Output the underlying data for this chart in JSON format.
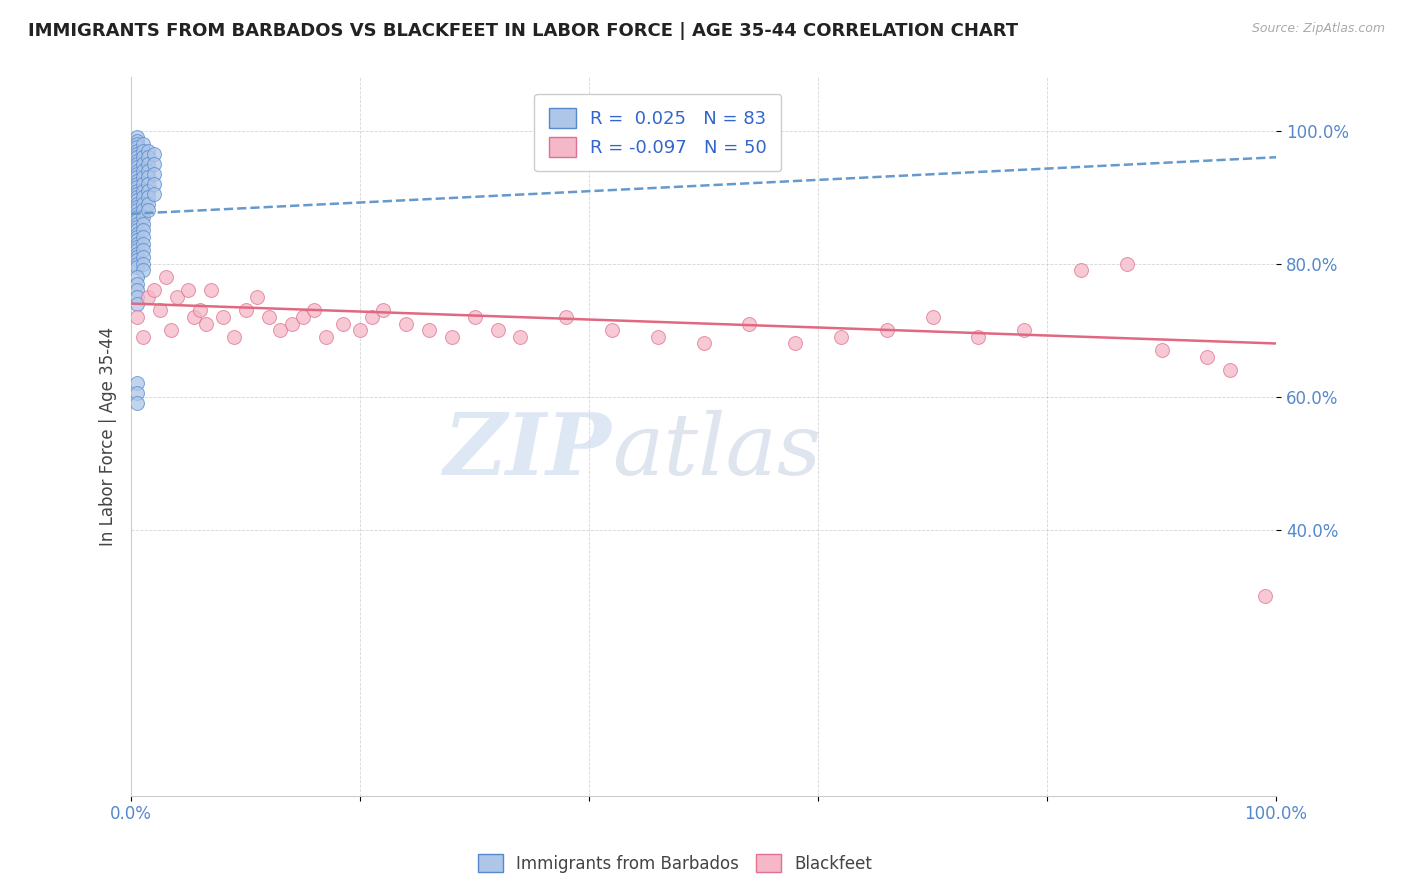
{
  "title": "IMMIGRANTS FROM BARBADOS VS BLACKFEET IN LABOR FORCE | AGE 35-44 CORRELATION CHART",
  "source": "Source: ZipAtlas.com",
  "ylabel": "In Labor Force | Age 35-44",
  "xlim": [
    0.0,
    1.0
  ],
  "ylim": [
    0.0,
    1.08
  ],
  "y_ticks": [
    0.4,
    0.6,
    0.8,
    1.0
  ],
  "y_tick_labels": [
    "40.0%",
    "60.0%",
    "80.0%",
    "100.0%"
  ],
  "x_ticks": [
    0.0,
    0.2,
    0.4,
    0.6,
    0.8,
    1.0
  ],
  "x_tick_labels": [
    "0.0%",
    "",
    "",
    "",
    "",
    "100.0%"
  ],
  "barbados_r": 0.025,
  "barbados_n": 83,
  "blackfeet_r": -0.097,
  "blackfeet_n": 50,
  "barbados_color": "#aec6e8",
  "blackfeet_color": "#f4b8c8",
  "barbados_edge_color": "#5588cc",
  "blackfeet_edge_color": "#e07090",
  "barbados_line_color": "#6699cc",
  "blackfeet_line_color": "#e06880",
  "watermark_zip": "ZIP",
  "watermark_atlas": "atlas",
  "barbados_x": [
    0.005,
    0.005,
    0.005,
    0.005,
    0.005,
    0.005,
    0.005,
    0.005,
    0.005,
    0.005,
    0.005,
    0.005,
    0.005,
    0.005,
    0.005,
    0.005,
    0.005,
    0.005,
    0.005,
    0.005,
    0.005,
    0.005,
    0.005,
    0.005,
    0.005,
    0.005,
    0.005,
    0.005,
    0.005,
    0.005,
    0.005,
    0.005,
    0.005,
    0.005,
    0.005,
    0.005,
    0.005,
    0.005,
    0.005,
    0.005,
    0.01,
    0.01,
    0.01,
    0.01,
    0.01,
    0.01,
    0.01,
    0.01,
    0.01,
    0.01,
    0.01,
    0.01,
    0.01,
    0.01,
    0.01,
    0.01,
    0.01,
    0.01,
    0.01,
    0.01,
    0.015,
    0.015,
    0.015,
    0.015,
    0.015,
    0.015,
    0.015,
    0.015,
    0.015,
    0.015,
    0.02,
    0.02,
    0.02,
    0.02,
    0.02,
    0.005,
    0.005,
    0.005,
    0.005,
    0.005,
    0.005,
    0.005,
    0.005
  ],
  "barbados_y": [
    0.99,
    0.985,
    0.98,
    0.975,
    0.97,
    0.965,
    0.96,
    0.955,
    0.95,
    0.945,
    0.94,
    0.935,
    0.93,
    0.925,
    0.92,
    0.915,
    0.91,
    0.905,
    0.9,
    0.895,
    0.89,
    0.885,
    0.88,
    0.875,
    0.87,
    0.865,
    0.86,
    0.855,
    0.85,
    0.845,
    0.84,
    0.835,
    0.83,
    0.825,
    0.82,
    0.815,
    0.81,
    0.805,
    0.8,
    0.795,
    0.98,
    0.97,
    0.96,
    0.95,
    0.94,
    0.93,
    0.92,
    0.91,
    0.9,
    0.89,
    0.88,
    0.87,
    0.86,
    0.85,
    0.84,
    0.83,
    0.82,
    0.81,
    0.8,
    0.79,
    0.97,
    0.96,
    0.95,
    0.94,
    0.93,
    0.92,
    0.91,
    0.9,
    0.89,
    0.88,
    0.965,
    0.95,
    0.935,
    0.92,
    0.905,
    0.62,
    0.605,
    0.59,
    0.78,
    0.77,
    0.76,
    0.75,
    0.74
  ],
  "blackfeet_x": [
    0.005,
    0.01,
    0.015,
    0.02,
    0.025,
    0.03,
    0.035,
    0.04,
    0.05,
    0.055,
    0.06,
    0.065,
    0.07,
    0.08,
    0.09,
    0.1,
    0.11,
    0.12,
    0.13,
    0.14,
    0.15,
    0.16,
    0.17,
    0.185,
    0.2,
    0.21,
    0.22,
    0.24,
    0.26,
    0.28,
    0.3,
    0.32,
    0.34,
    0.38,
    0.42,
    0.46,
    0.5,
    0.54,
    0.58,
    0.62,
    0.66,
    0.7,
    0.74,
    0.78,
    0.83,
    0.87,
    0.9,
    0.94,
    0.96,
    0.99
  ],
  "blackfeet_y": [
    0.72,
    0.69,
    0.75,
    0.76,
    0.73,
    0.78,
    0.7,
    0.75,
    0.76,
    0.72,
    0.73,
    0.71,
    0.76,
    0.72,
    0.69,
    0.73,
    0.75,
    0.72,
    0.7,
    0.71,
    0.72,
    0.73,
    0.69,
    0.71,
    0.7,
    0.72,
    0.73,
    0.71,
    0.7,
    0.69,
    0.72,
    0.7,
    0.69,
    0.72,
    0.7,
    0.69,
    0.68,
    0.71,
    0.68,
    0.69,
    0.7,
    0.72,
    0.69,
    0.7,
    0.79,
    0.8,
    0.67,
    0.66,
    0.64,
    0.3
  ],
  "barbados_trendline_x": [
    0.0,
    1.0
  ],
  "barbados_trendline_y": [
    0.875,
    0.96
  ],
  "blackfeet_trendline_x": [
    0.0,
    1.0
  ],
  "blackfeet_trendline_y": [
    0.74,
    0.68
  ]
}
